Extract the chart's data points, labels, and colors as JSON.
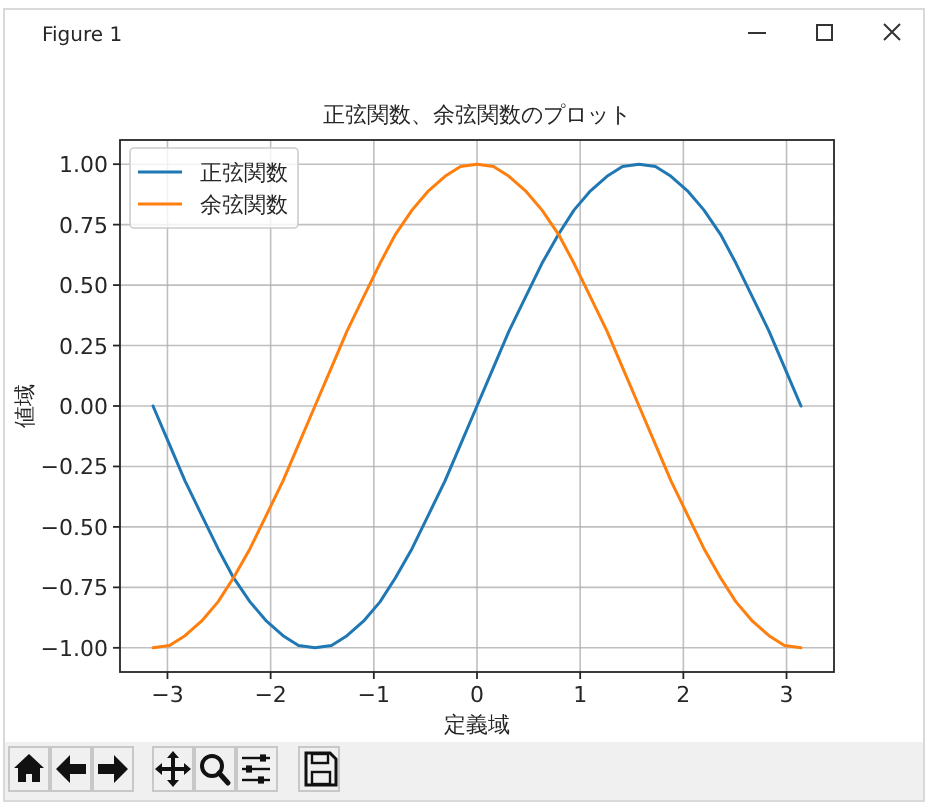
{
  "chart_data": {
    "type": "line",
    "title": "正弦関数、余弦関数のプロット",
    "xlabel": "定義域",
    "ylabel": "値域",
    "x": [
      -3.14,
      -2.98,
      -2.83,
      -2.67,
      -2.51,
      -2.36,
      -2.2,
      -2.04,
      -1.88,
      -1.73,
      -1.57,
      -1.41,
      -1.26,
      -1.1,
      -0.94,
      -0.79,
      -0.63,
      -0.47,
      -0.31,
      -0.16,
      0,
      0.16,
      0.31,
      0.47,
      0.63,
      0.79,
      0.94,
      1.1,
      1.26,
      1.41,
      1.57,
      1.73,
      1.88,
      2.04,
      2.2,
      2.36,
      2.51,
      2.67,
      2.83,
      2.98,
      3.14
    ],
    "series": [
      {
        "name": "正弦関数",
        "color": "#1f77b4",
        "values": [
          0,
          -0.16,
          -0.31,
          -0.45,
          -0.59,
          -0.71,
          -0.81,
          -0.89,
          -0.95,
          -0.99,
          -1,
          -0.99,
          -0.95,
          -0.89,
          -0.81,
          -0.71,
          -0.59,
          -0.45,
          -0.31,
          -0.16,
          0,
          0.16,
          0.31,
          0.45,
          0.59,
          0.71,
          0.81,
          0.89,
          0.95,
          0.99,
          1,
          0.99,
          0.95,
          0.89,
          0.81,
          0.71,
          0.59,
          0.45,
          0.31,
          0.16,
          0
        ]
      },
      {
        "name": "余弦関数",
        "color": "#ff7f0e",
        "values": [
          -1,
          -0.99,
          -0.95,
          -0.89,
          -0.81,
          -0.71,
          -0.59,
          -0.45,
          -0.31,
          -0.16,
          0,
          0.16,
          0.31,
          0.45,
          0.59,
          0.71,
          0.81,
          0.89,
          0.95,
          0.99,
          1,
          0.99,
          0.95,
          0.89,
          0.81,
          0.71,
          0.59,
          0.45,
          0.31,
          0.16,
          0,
          -0.16,
          -0.31,
          -0.45,
          -0.59,
          -0.71,
          -0.81,
          -0.89,
          -0.95,
          -0.99,
          -1
        ]
      }
    ],
    "xlim": [
      -3.46,
      3.46
    ],
    "ylim": [
      -1.1,
      1.1
    ],
    "xticks": [
      {
        "value": -3,
        "label": "−3"
      },
      {
        "value": -2,
        "label": "−2"
      },
      {
        "value": -1,
        "label": "−1"
      },
      0,
      1,
      2,
      3
    ],
    "yticks": [
      {
        "value": -1,
        "label": "−1.00"
      },
      {
        "value": -0.75,
        "label": "−0.75"
      },
      {
        "value": -0.5,
        "label": "−0.50"
      },
      {
        "value": -0.25,
        "label": "−0.25"
      },
      {
        "value": 0,
        "label": "0.00"
      },
      {
        "value": 0.25,
        "label": "0.25"
      },
      {
        "value": 0.5,
        "label": "0.50"
      },
      {
        "value": 0.75,
        "label": "0.75"
      },
      {
        "value": 1,
        "label": "1.00"
      }
    ],
    "grid": true,
    "legend": "top left",
    "annotations": [
      "Figure 1"
    ]
  }
}
